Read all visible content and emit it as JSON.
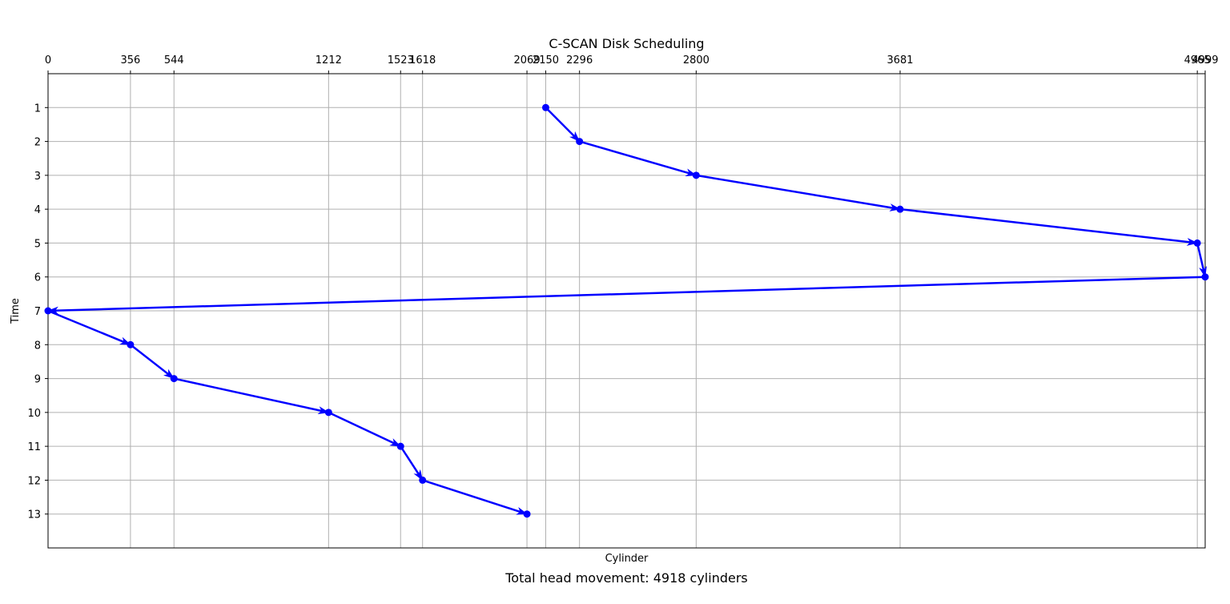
{
  "chart_data": {
    "type": "line",
    "title": "C-SCAN Disk Scheduling",
    "xlabel": "Cylinder",
    "ylabel": "Time",
    "caption": "Total head movement: 4918 cylinders",
    "x_axis_position": "top",
    "y_axis_inverted": true,
    "xlim": [
      0,
      4999
    ],
    "ylim": [
      0,
      14
    ],
    "xticks": [
      0,
      356,
      544,
      1212,
      1523,
      1618,
      2069,
      2150,
      2296,
      2800,
      3681,
      4965,
      4999
    ],
    "yticks": [
      1,
      2,
      3,
      4,
      5,
      6,
      7,
      8,
      9,
      10,
      11,
      12,
      13
    ],
    "grid": true,
    "series": [
      {
        "x": [
          2150,
          2296,
          2800,
          3681,
          4965,
          4999,
          0,
          356,
          544,
          1212,
          1523,
          1618,
          2069
        ],
        "y": [
          1,
          2,
          3,
          4,
          5,
          6,
          7,
          8,
          9,
          10,
          11,
          12,
          13
        ],
        "color": "#0000ff",
        "marker": "circle",
        "arrows": true
      }
    ]
  }
}
